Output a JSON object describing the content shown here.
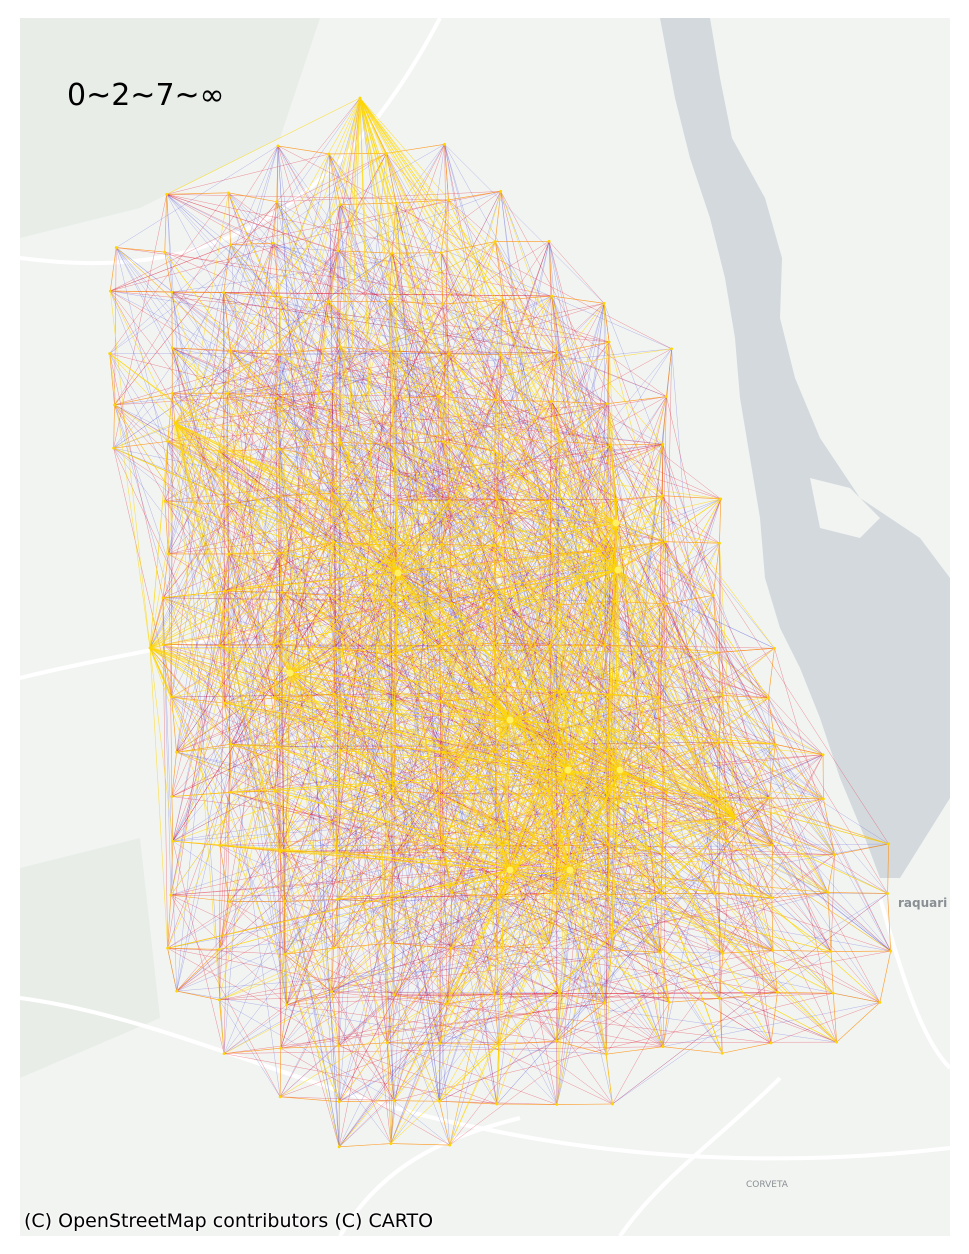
{
  "map": {
    "legend_title": "0~2~7~∞",
    "attribution": "(C) OpenStreetMap contributors (C) CARTO",
    "place_labels": [
      {
        "name": "raquari"
      },
      {
        "name": "CORVETA"
      }
    ],
    "basemap": {
      "land": "#f2f4f2",
      "water": "#d4d9dd",
      "roads": "#ffffff",
      "green": "#e8ede8"
    },
    "flow_colors": {
      "low": "#3b3bd6",
      "mid": "#e0102a",
      "high": "#ffd700"
    },
    "flow_classes": [
      "0-2",
      "2-7",
      "7+"
    ]
  }
}
